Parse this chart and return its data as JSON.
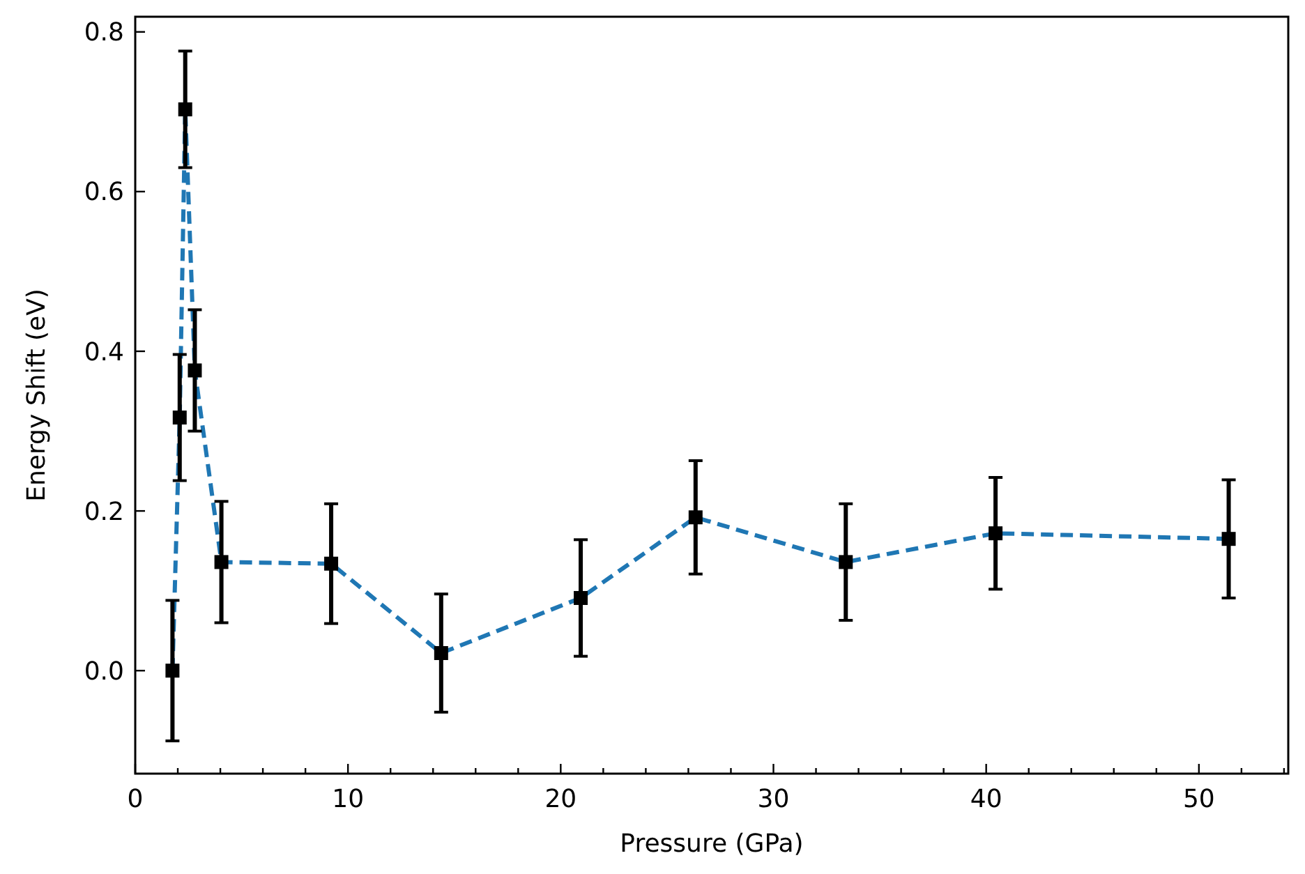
{
  "chart_data": {
    "type": "line",
    "xlabel": "Pressure (GPa)",
    "ylabel": "Energy Shift (eV)",
    "x": [
      1.75,
      2.09,
      2.35,
      2.8,
      4.05,
      9.21,
      14.38,
      20.94,
      26.34,
      33.4,
      40.44,
      51.4
    ],
    "series": [
      {
        "color": "#1f77b4",
        "values": [
          0,
          0.317,
          0.703,
          0.376,
          0.136,
          0.134,
          0.022,
          0.091,
          0.192,
          0.136,
          0.172,
          0.165
        ],
        "errors": [
          0.088,
          0.079,
          0.073,
          0.076,
          0.076,
          0.075,
          0.074,
          0.073,
          0.071,
          0.073,
          0.07,
          0.074
        ]
      }
    ],
    "xlim": [
      0,
      54.2
    ],
    "ylim": [
      -0.129,
      0.819
    ],
    "xticks": [
      0,
      {
        "value": 2,
        "label": null
      },
      {
        "value": 4,
        "label": null
      },
      {
        "value": 6,
        "label": null
      },
      {
        "value": 8,
        "label": null
      },
      10,
      {
        "value": 12,
        "label": null
      },
      {
        "value": 14,
        "label": null
      },
      {
        "value": 16,
        "label": null
      },
      {
        "value": 18,
        "label": null
      },
      20,
      {
        "value": 22,
        "label": null
      },
      {
        "value": 24,
        "label": null
      },
      {
        "value": 26,
        "label": null
      },
      {
        "value": 28,
        "label": null
      },
      30,
      {
        "value": 32,
        "label": null
      },
      {
        "value": 34,
        "label": null
      },
      {
        "value": 36,
        "label": null
      },
      {
        "value": 38,
        "label": null
      },
      40,
      {
        "value": 42,
        "label": null
      },
      {
        "value": 44,
        "label": null
      },
      {
        "value": 46,
        "label": null
      },
      {
        "value": 48,
        "label": null
      },
      50,
      {
        "value": 52,
        "label": null
      },
      {
        "value": 54,
        "label": null
      }
    ],
    "yticks": [
      {
        "value": 0,
        "label": "0.0"
      },
      {
        "value": 0.2,
        "label": "0.2"
      },
      {
        "value": 0.4,
        "label": "0.4"
      },
      {
        "value": 0.6,
        "label": "0.6"
      },
      {
        "value": 0.8,
        "label": "0.8"
      }
    ],
    "marker": "square",
    "line_style": "dashed"
  }
}
